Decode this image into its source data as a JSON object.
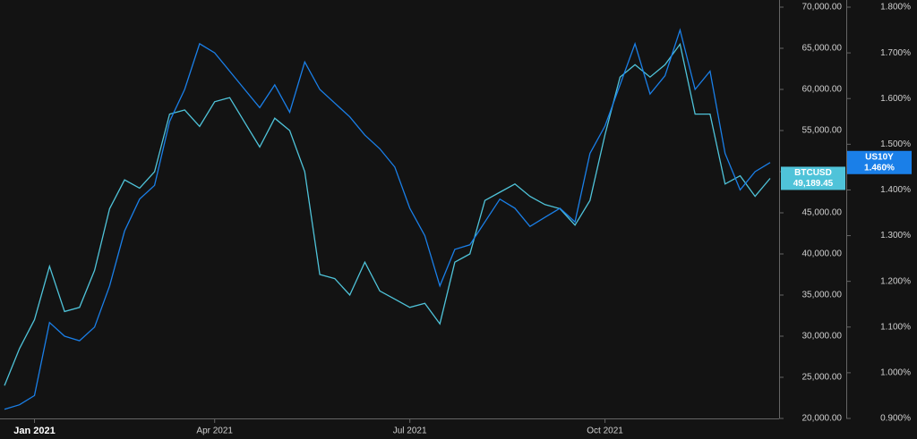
{
  "chart_data": {
    "type": "line",
    "categories": [
      null,
      null,
      "Jan 2021",
      null,
      null,
      null,
      null,
      null,
      null,
      null,
      null,
      null,
      null,
      null,
      "Apr 2021",
      null,
      null,
      null,
      null,
      null,
      null,
      null,
      null,
      null,
      null,
      null,
      null,
      "Jul 2021",
      null,
      null,
      null,
      null,
      null,
      null,
      null,
      null,
      null,
      null,
      null,
      null,
      "Oct 2021",
      null,
      null,
      null,
      null,
      null,
      null,
      null,
      null,
      null,
      null,
      null
    ],
    "series": [
      {
        "name": "BTCUSD",
        "color": "#4fc3d9",
        "values": [
          24000,
          28500,
          32000,
          38500,
          33000,
          33500,
          38000,
          45500,
          49000,
          48000,
          50000,
          57000,
          57500,
          55500,
          58500,
          59000,
          56000,
          53000,
          56500,
          55000,
          50000,
          37500,
          37000,
          35000,
          39000,
          35500,
          34500,
          33500,
          34000,
          31500,
          39000,
          40000,
          46500,
          47500,
          48500,
          47000,
          46000,
          45500,
          43500,
          46500,
          54500,
          61500,
          63000,
          61500,
          63000,
          65500,
          57000,
          57000,
          48500,
          49500,
          47000,
          49189.45
        ],
        "value_labels": [
          null,
          null,
          null,
          null,
          null,
          null,
          null,
          null,
          null,
          null,
          null,
          null,
          null,
          null,
          null,
          null,
          null,
          null,
          null,
          null,
          null,
          null,
          null,
          null,
          null,
          null,
          null,
          null,
          null,
          null,
          null,
          null,
          null,
          null,
          null,
          null,
          null,
          null,
          null,
          null,
          null,
          null,
          null,
          null,
          null,
          null,
          null,
          null,
          null,
          null,
          null,
          "49,189.45"
        ]
      },
      {
        "name": "US10Y",
        "color": "#1a7fe8",
        "axis": "y2",
        "values": [
          0.92,
          0.93,
          0.95,
          1.11,
          1.08,
          1.07,
          1.1,
          1.19,
          1.31,
          1.38,
          1.41,
          1.55,
          1.62,
          1.72,
          1.7,
          1.66,
          1.62,
          1.58,
          1.63,
          1.57,
          1.68,
          1.62,
          1.59,
          1.56,
          1.52,
          1.49,
          1.45,
          1.36,
          1.3,
          1.19,
          1.27,
          1.28,
          1.33,
          1.38,
          1.36,
          1.32,
          1.34,
          1.36,
          1.33,
          1.48,
          1.54,
          1.63,
          1.72,
          1.61,
          1.65,
          1.75,
          1.62,
          1.66,
          1.48,
          1.4,
          1.44,
          1.46
        ],
        "value_labels": [
          null,
          null,
          null,
          null,
          null,
          null,
          null,
          null,
          null,
          null,
          null,
          null,
          null,
          null,
          null,
          null,
          null,
          null,
          null,
          null,
          null,
          null,
          null,
          null,
          null,
          null,
          null,
          null,
          null,
          null,
          null,
          null,
          null,
          null,
          null,
          null,
          null,
          null,
          null,
          null,
          null,
          null,
          null,
          null,
          null,
          null,
          null,
          null,
          null,
          null,
          null,
          "1.460%"
        ]
      }
    ],
    "ylim": [
      20000,
      70000
    ],
    "yticks": [
      {
        "value": 20000,
        "label": "20,000.00"
      },
      {
        "value": 25000,
        "label": "25,000.00"
      },
      {
        "value": 30000,
        "label": "30,000.00"
      },
      {
        "value": 35000,
        "label": "35,000.00"
      },
      {
        "value": 40000,
        "label": "40,000.00"
      },
      {
        "value": 45000,
        "label": "45,000.00"
      },
      {
        "value": 50000,
        "label": "50,000.00"
      },
      {
        "value": 55000,
        "label": "55,000.00"
      },
      {
        "value": 60000,
        "label": "60,000.00"
      },
      {
        "value": 65000,
        "label": "65,000.00"
      },
      {
        "value": 70000,
        "label": "70,000.00"
      }
    ],
    "y2lim": [
      0.9,
      1.8
    ],
    "y2ticks": [
      {
        "value": 0.9,
        "label": "0.900%"
      },
      {
        "value": 1.0,
        "label": "1.000%"
      },
      {
        "value": 1.1,
        "label": "1.100%"
      },
      {
        "value": 1.2,
        "label": "1.200%"
      },
      {
        "value": 1.3,
        "label": "1.300%"
      },
      {
        "value": 1.4,
        "label": "1.400%"
      },
      {
        "value": 1.5,
        "label": "1.500%"
      },
      {
        "value": 1.6,
        "label": "1.600%"
      },
      {
        "value": 1.7,
        "label": "1.700%"
      },
      {
        "value": 1.8,
        "label": "1.800%"
      }
    ],
    "grid": false
  }
}
